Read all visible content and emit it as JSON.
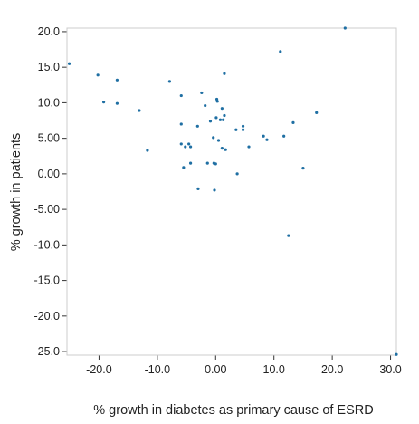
{
  "chart_data": {
    "type": "scatter",
    "title": "",
    "xlabel": "% growth in diabetes as primary cause of ESRD",
    "ylabel": "% growth in patients",
    "xlim": [
      -25.5,
      31.0
    ],
    "ylim": [
      -25.5,
      20.5
    ],
    "x_ticks": [
      -20,
      -10,
      0,
      10,
      20,
      30
    ],
    "x_tick_labels": [
      "-20.0",
      "-10.0",
      "0.00",
      "10.0",
      "20.0",
      "30.0"
    ],
    "y_ticks": [
      20,
      15,
      10,
      5,
      0,
      -5,
      -10,
      -15,
      -20,
      -25
    ],
    "y_tick_labels": [
      "20.0",
      "15.0",
      "10.0",
      "5.00",
      "0.00",
      "-5.00",
      "-10.0",
      "-15.0",
      "-20.0",
      "-25.0"
    ],
    "grid": false,
    "legend": "none",
    "marker_color": "#1f6fa3",
    "points": [
      {
        "x": -25.1,
        "y": 15.5
      },
      {
        "x": -20.2,
        "y": 13.9
      },
      {
        "x": -19.2,
        "y": 10.1
      },
      {
        "x": -16.9,
        "y": 13.2
      },
      {
        "x": -16.9,
        "y": 9.9
      },
      {
        "x": -13.1,
        "y": 8.9
      },
      {
        "x": -11.7,
        "y": 3.3
      },
      {
        "x": -7.9,
        "y": 13.0
      },
      {
        "x": -5.9,
        "y": 11.0
      },
      {
        "x": -5.9,
        "y": 7.0
      },
      {
        "x": -5.9,
        "y": 4.2
      },
      {
        "x": -5.5,
        "y": 0.9
      },
      {
        "x": -5.2,
        "y": 3.8
      },
      {
        "x": -4.6,
        "y": 4.2
      },
      {
        "x": -4.3,
        "y": 3.8
      },
      {
        "x": -4.3,
        "y": 1.5
      },
      {
        "x": -3.1,
        "y": 6.7
      },
      {
        "x": -3.0,
        "y": -2.1
      },
      {
        "x": -2.4,
        "y": 11.4
      },
      {
        "x": -1.8,
        "y": 9.6
      },
      {
        "x": -1.4,
        "y": 1.5
      },
      {
        "x": -0.9,
        "y": 7.4
      },
      {
        "x": -0.4,
        "y": 5.1
      },
      {
        "x": -0.3,
        "y": 1.5
      },
      {
        "x": -0.2,
        "y": -2.3
      },
      {
        "x": 0.0,
        "y": 1.4
      },
      {
        "x": 0.1,
        "y": 7.9
      },
      {
        "x": 0.2,
        "y": 10.5
      },
      {
        "x": 0.3,
        "y": 10.2
      },
      {
        "x": 0.5,
        "y": 4.7
      },
      {
        "x": 0.8,
        "y": 7.6
      },
      {
        "x": 1.1,
        "y": 9.2
      },
      {
        "x": 1.1,
        "y": 3.6
      },
      {
        "x": 1.3,
        "y": 7.6
      },
      {
        "x": 1.5,
        "y": 8.2
      },
      {
        "x": 1.5,
        "y": 14.1
      },
      {
        "x": 1.7,
        "y": 3.4
      },
      {
        "x": 3.5,
        "y": 6.2
      },
      {
        "x": 3.7,
        "y": 0.0
      },
      {
        "x": 4.7,
        "y": 6.2
      },
      {
        "x": 4.7,
        "y": 6.7
      },
      {
        "x": 5.7,
        "y": 3.8
      },
      {
        "x": 8.2,
        "y": 5.3
      },
      {
        "x": 8.8,
        "y": 4.8
      },
      {
        "x": 11.1,
        "y": 17.2
      },
      {
        "x": 11.7,
        "y": 5.3
      },
      {
        "x": 12.5,
        "y": -8.7
      },
      {
        "x": 13.3,
        "y": 7.2
      },
      {
        "x": 15.0,
        "y": 0.8
      },
      {
        "x": 17.3,
        "y": 8.6
      },
      {
        "x": 22.2,
        "y": 20.5
      },
      {
        "x": 31.0,
        "y": -25.4
      }
    ]
  }
}
